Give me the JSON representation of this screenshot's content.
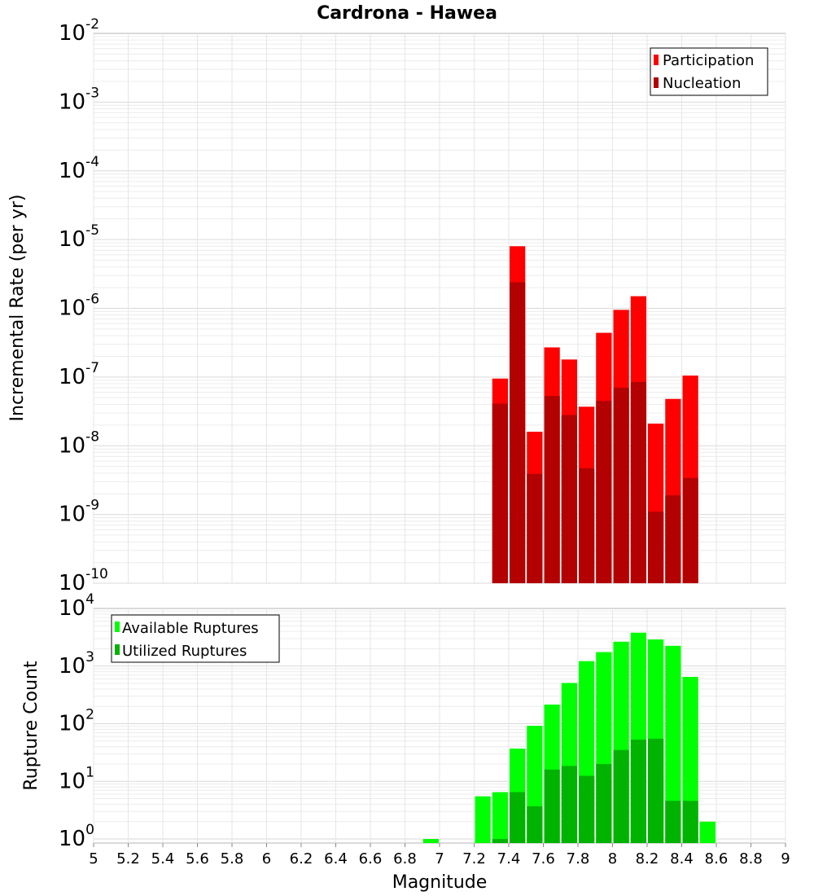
{
  "chart_data": [
    {
      "type": "bar",
      "title": "Cardrona - Hawea",
      "xlabel": "",
      "ylabel": "Incremental Rate (per yr)",
      "yscale": "log",
      "xlim": [
        5,
        9
      ],
      "ylim_exp": [
        -10,
        -2
      ],
      "y_tick_labels": [
        {
          "base": "10",
          "exp": "-10"
        },
        {
          "base": "10",
          "exp": "-9"
        },
        {
          "base": "10",
          "exp": "-8"
        },
        {
          "base": "10",
          "exp": "-7"
        },
        {
          "base": "10",
          "exp": "-6"
        },
        {
          "base": "10",
          "exp": "-5"
        },
        {
          "base": "10",
          "exp": "-4"
        },
        {
          "base": "10",
          "exp": "-3"
        },
        {
          "base": "10",
          "exp": "-2"
        }
      ],
      "legend": {
        "position": "top-right"
      },
      "x": [
        7.35,
        7.45,
        7.55,
        7.65,
        7.75,
        7.85,
        7.95,
        8.05,
        8.15,
        8.25,
        8.35,
        8.45
      ],
      "series": [
        {
          "name": "Participation",
          "color": "#ff0000",
          "values": [
            9.5e-08,
            8e-06,
            1.6e-08,
            2.7e-07,
            1.8e-07,
            3.7e-08,
            4.4e-07,
            9.5e-07,
            1.5e-06,
            2.1e-08,
            4.8e-08,
            1.05e-07
          ]
        },
        {
          "name": "Nucleation",
          "color": "#b30000",
          "values": [
            4.1e-08,
            2.4e-06,
            3.9e-09,
            5.3e-08,
            2.8e-08,
            4.7e-09,
            4.5e-08,
            7e-08,
            8.5e-08,
            1.1e-09,
            1.9e-09,
            3.4e-09
          ]
        }
      ],
      "grid": true
    },
    {
      "type": "bar",
      "title": "",
      "xlabel": "Magnitude",
      "ylabel": "Rupture Count",
      "yscale": "log",
      "xlim": [
        5,
        9
      ],
      "x_ticks": [
        "5",
        "5.2",
        "5.4",
        "5.6",
        "5.8",
        "6",
        "6.2",
        "6.4",
        "6.6",
        "6.8",
        "7",
        "7.2",
        "7.4",
        "7.6",
        "7.8",
        "8",
        "8.2",
        "8.4",
        "8.6",
        "8.8",
        "9"
      ],
      "ylim": [
        0.85,
        10000
      ],
      "y_tick_labels": [
        {
          "base": "10",
          "exp": "0"
        },
        {
          "base": "10",
          "exp": "1"
        },
        {
          "base": "10",
          "exp": "2"
        },
        {
          "base": "10",
          "exp": "3"
        },
        {
          "base": "10",
          "exp": "4"
        }
      ],
      "legend": {
        "position": "top-left"
      },
      "x": [
        6.95,
        7.25,
        7.35,
        7.45,
        7.55,
        7.65,
        7.75,
        7.85,
        7.95,
        8.05,
        8.15,
        8.25,
        8.35,
        8.45,
        8.55
      ],
      "series": [
        {
          "name": "Available Ruptures",
          "color": "#00ff00",
          "values": [
            1,
            5.5,
            6.5,
            37,
            92,
            215,
            510,
            1220,
            1750,
            2650,
            3800,
            2900,
            2250,
            650,
            2
          ]
        },
        {
          "name": "Utilized Ruptures",
          "color": "#00b300",
          "values": [
            0,
            0,
            1,
            6.5,
            3.7,
            16,
            18.5,
            12.5,
            20,
            35,
            53,
            55,
            4.6,
            4.6,
            0
          ]
        }
      ],
      "grid": true
    }
  ]
}
